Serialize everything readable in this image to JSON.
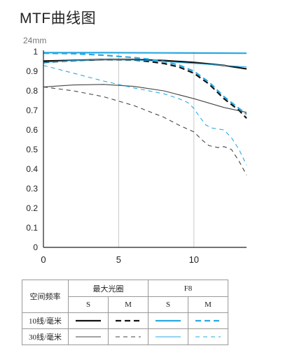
{
  "chart_data": {
    "type": "line",
    "title": "MTF曲线图",
    "subtitle": "24mm",
    "xlim": [
      0,
      13.5
    ],
    "ylim": [
      0,
      1
    ],
    "x_ticks": [
      "0",
      "5",
      "10"
    ],
    "y_ticks": [
      "0",
      "0.1",
      "0.2",
      "0.3",
      "0.4",
      "0.5",
      "0.6",
      "0.7",
      "0.8",
      "0.9",
      "1"
    ],
    "grid": {
      "vertical": true,
      "horizontal": false
    },
    "series": [
      {
        "group": "最大光圈",
        "freq": "10线/毫米",
        "orientation": "S",
        "color": "#111111",
        "dash": "solid",
        "width": "bold",
        "x": [
          0,
          2,
          4,
          6,
          8,
          10,
          12,
          13.5
        ],
        "y": [
          0.952,
          0.956,
          0.96,
          0.96,
          0.955,
          0.945,
          0.93,
          0.912
        ]
      },
      {
        "group": "最大光圈",
        "freq": "10线/毫米",
        "orientation": "M",
        "color": "#111111",
        "dash": "dashed",
        "width": "bold",
        "x": [
          0,
          2,
          4,
          6,
          7,
          8,
          9,
          10,
          11,
          12,
          13,
          13.5
        ],
        "y": [
          0.945,
          0.955,
          0.96,
          0.958,
          0.95,
          0.94,
          0.922,
          0.89,
          0.835,
          0.76,
          0.7,
          0.66
        ]
      },
      {
        "group": "F8",
        "freq": "10线/毫米",
        "orientation": "S",
        "color": "#29a9e1",
        "dash": "solid",
        "width": "bold",
        "x": [
          0,
          4,
          8,
          12,
          13.5
        ],
        "y": [
          0.995,
          0.995,
          0.994,
          0.993,
          0.992
        ]
      },
      {
        "group": "F8",
        "freq": "10线/毫米",
        "orientation": "M",
        "color": "#29a9e1",
        "dash": "dashed",
        "width": "bold",
        "x": [
          0,
          2,
          4,
          6,
          7,
          8,
          9,
          10,
          11,
          12,
          13,
          13.5
        ],
        "y": [
          0.992,
          0.99,
          0.982,
          0.97,
          0.962,
          0.95,
          0.932,
          0.9,
          0.845,
          0.77,
          0.71,
          0.68
        ]
      },
      {
        "group": "最大光圈",
        "freq": "30线/毫米",
        "orientation": "S",
        "color": "#444444",
        "dash": "solid",
        "width": "thin",
        "x": [
          0,
          2,
          4,
          6,
          8,
          10,
          12,
          13.5
        ],
        "y": [
          0.82,
          0.83,
          0.833,
          0.823,
          0.8,
          0.76,
          0.715,
          0.69
        ]
      },
      {
        "group": "最大光圈",
        "freq": "30线/毫米",
        "orientation": "M",
        "color": "#444444",
        "dash": "dashed",
        "width": "thin",
        "x": [
          0,
          2,
          4,
          6,
          8,
          9,
          10,
          10.6,
          11,
          11.6,
          12,
          12.5,
          13,
          13.5
        ],
        "y": [
          0.82,
          0.8,
          0.77,
          0.725,
          0.665,
          0.625,
          0.59,
          0.545,
          0.52,
          0.51,
          0.515,
          0.5,
          0.44,
          0.37
        ]
      },
      {
        "group": "F8",
        "freq": "30线/毫米",
        "orientation": "S",
        "color": "#29a9e1",
        "dash": "solid",
        "width": "thin",
        "x": [
          0,
          2,
          4,
          6,
          8,
          10,
          12,
          13.5
        ],
        "y": [
          0.945,
          0.955,
          0.96,
          0.958,
          0.95,
          0.94,
          0.93,
          0.922
        ]
      },
      {
        "group": "F8",
        "freq": "30线/毫米",
        "orientation": "M",
        "color": "#29a9e1",
        "dash": "dashed",
        "width": "thin",
        "x": [
          0,
          2,
          4,
          6,
          8,
          9,
          9.6,
          10,
          10.4,
          10.8,
          11.2,
          12,
          12.5,
          13,
          13.5
        ],
        "y": [
          0.93,
          0.89,
          0.85,
          0.815,
          0.785,
          0.76,
          0.74,
          0.71,
          0.665,
          0.625,
          0.61,
          0.6,
          0.56,
          0.5,
          0.42
        ]
      }
    ]
  },
  "legend": {
    "col_label": "空间频率",
    "group_1": "最大光圈",
    "group_2": "F8",
    "s_label": "S",
    "m_label": "M",
    "row_1": "10线/毫米",
    "row_2": "30线/毫米",
    "blue": "#29a9e1",
    "black": "#111111"
  }
}
